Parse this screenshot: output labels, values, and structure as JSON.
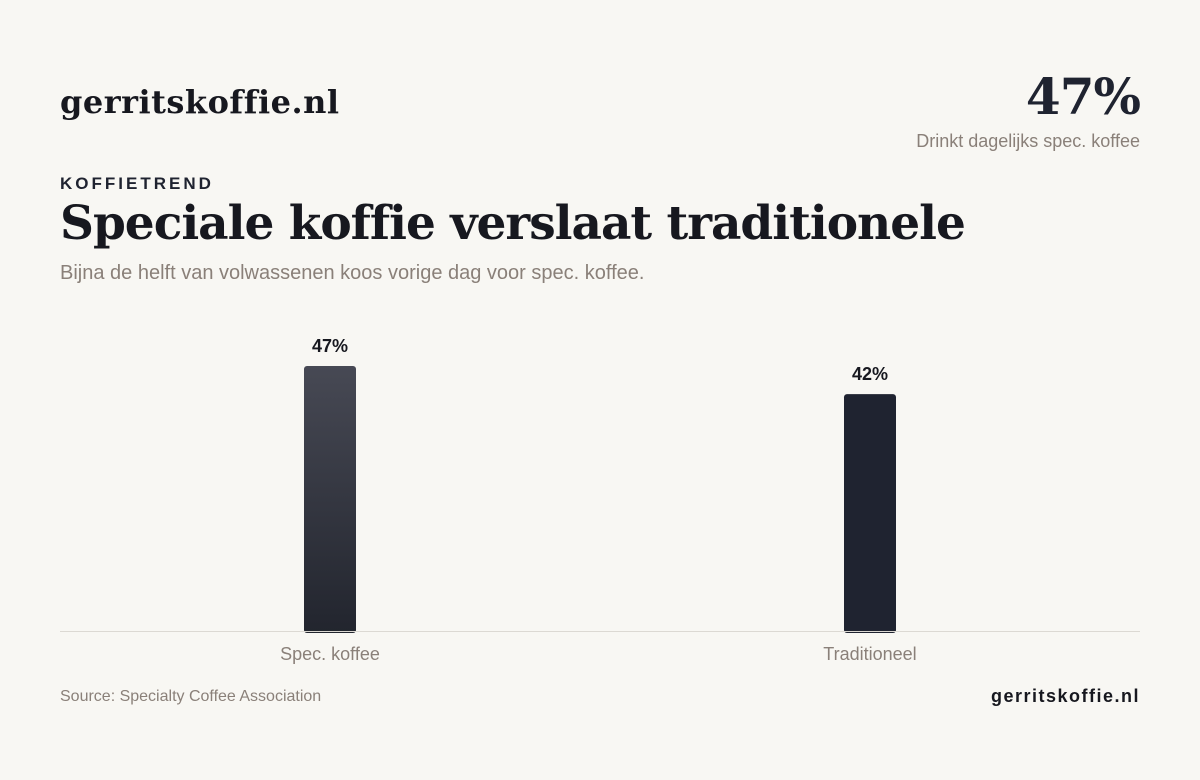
{
  "header": {
    "brand": "gerritskoffie.nl"
  },
  "kpi": {
    "value": "47%",
    "caption": "Drinkt dagelijks spec. koffee"
  },
  "eyebrow": "KOFFIETREND",
  "chart_data": {
    "type": "bar",
    "title": "Speciale koffie verslaat traditionele",
    "subtitle": "Bijna de helft van volwassenen koos vorige dag voor spec. koffee.",
    "categories": [
      "Spec. koffee",
      "Traditioneel"
    ],
    "values": [
      47,
      42
    ],
    "value_labels": [
      "47%",
      "42%"
    ],
    "ylim": [
      0,
      47
    ],
    "grid": false,
    "legend": "none",
    "colors": {
      "bar_1_top": "#474954",
      "bar_1_bottom": "#22252e",
      "bar_2": "#1f2330",
      "axis": "#dcd9d3",
      "value_label": "#17181f",
      "category_label": "#8a8079"
    }
  },
  "footer": {
    "source": "Source: Specialty Coffee Association",
    "brand": "gerritskoffie.nl"
  }
}
